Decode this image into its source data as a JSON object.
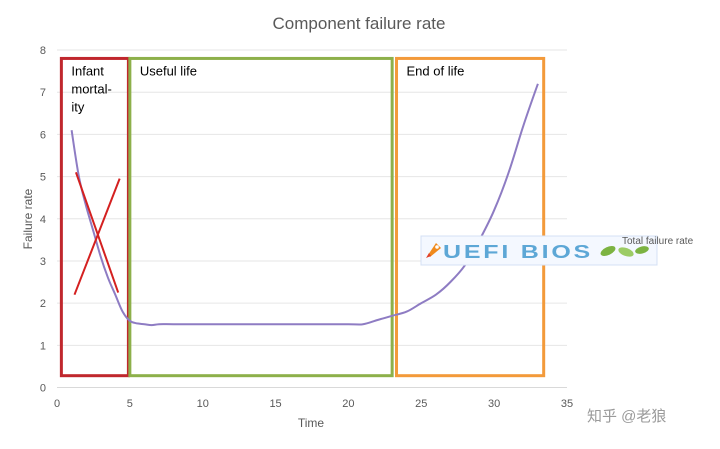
{
  "chart_data": {
    "type": "line",
    "title": "Component failure rate",
    "xlabel": "Time",
    "ylabel": "Failure rate",
    "xlim": [
      0,
      35
    ],
    "ylim": [
      0,
      8
    ],
    "x_ticks": [
      0,
      5,
      10,
      15,
      20,
      25,
      30,
      35
    ],
    "y_ticks": [
      0,
      1,
      2,
      3,
      4,
      5,
      6,
      7,
      8
    ],
    "grid": "horizontal",
    "legend_position": "right",
    "series": [
      {
        "name": "Total failure rate",
        "color": "#8e7cc3",
        "x": [
          1,
          1.5,
          2,
          2.5,
          3,
          3.5,
          4,
          4.5,
          5,
          5.5,
          6,
          6.5,
          7,
          8,
          10,
          15,
          20,
          21,
          22,
          23,
          24,
          25,
          26,
          27,
          28,
          29,
          30,
          31,
          32,
          33
        ],
        "y": [
          6.1,
          5.0,
          4.3,
          3.7,
          3.1,
          2.6,
          2.2,
          1.8,
          1.58,
          1.52,
          1.5,
          1.48,
          1.5,
          1.5,
          1.5,
          1.5,
          1.5,
          1.5,
          1.6,
          1.7,
          1.8,
          2.0,
          2.2,
          2.5,
          2.9,
          3.5,
          4.2,
          5.1,
          6.2,
          7.2
        ]
      }
    ],
    "regions": [
      {
        "label_lines": [
          "Infant",
          "mortal-",
          "ity"
        ],
        "x_start": 0.3,
        "x_end": 4.9,
        "color": "#c0272d"
      },
      {
        "label_lines": [
          "Useful life"
        ],
        "x_start": 5.0,
        "x_end": 23.0,
        "color": "#8db04a"
      },
      {
        "label_lines": [
          "End of life"
        ],
        "x_start": 23.3,
        "x_end": 33.4,
        "color": "#f39a3a"
      }
    ],
    "cross_mark": {
      "color": "#d42020"
    }
  },
  "watermark": {
    "text": "UEFI BIOS"
  },
  "footer": {
    "text": "知乎 @老狼"
  }
}
